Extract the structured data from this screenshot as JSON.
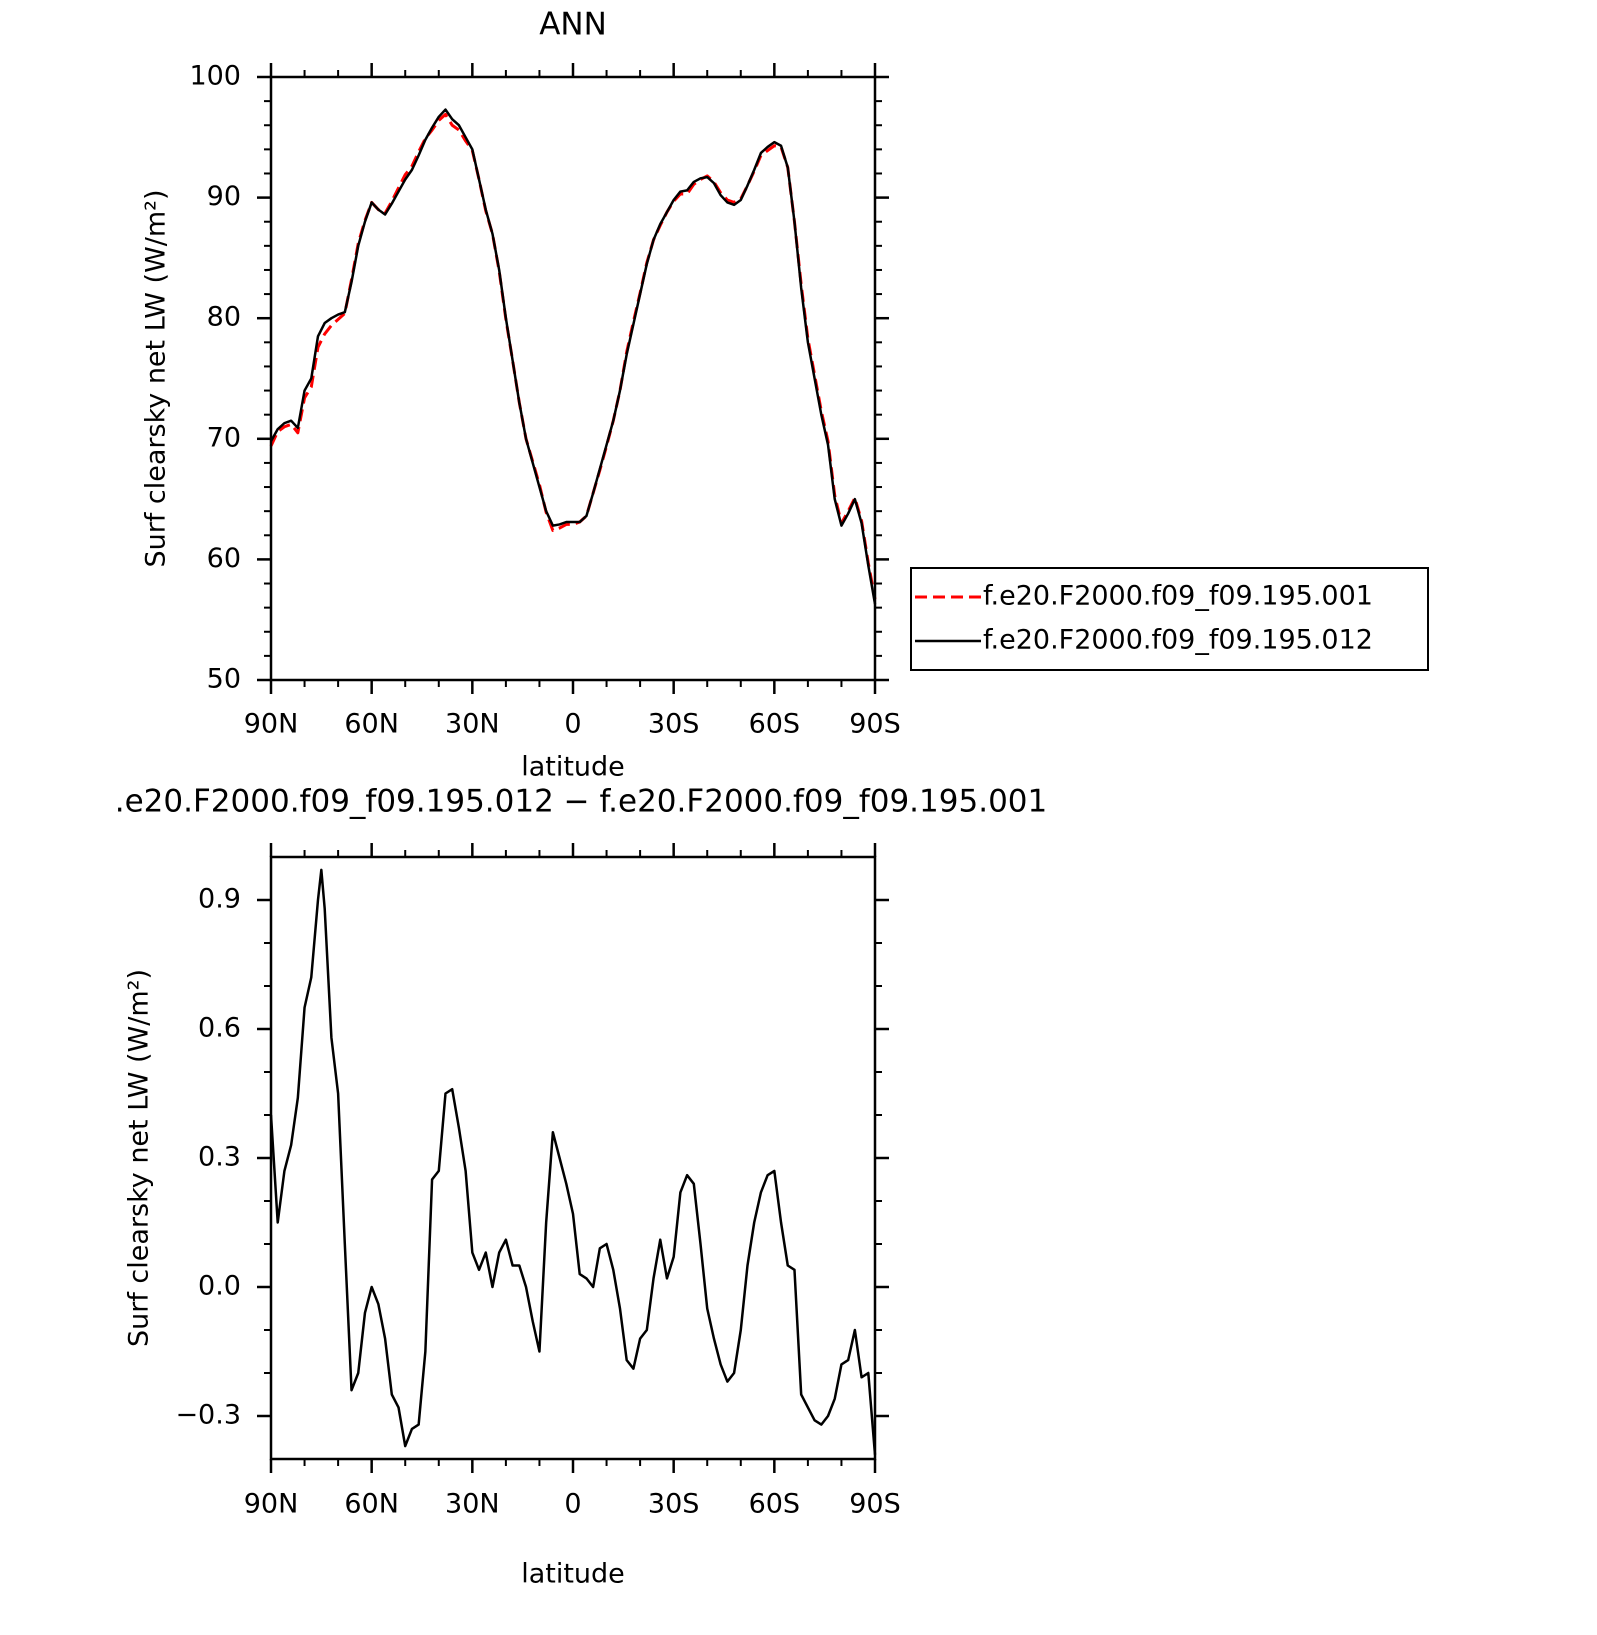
{
  "chart_data": [
    {
      "type": "line",
      "title": "ANN",
      "xlabel": "latitude",
      "ylabel": "Surf clearsky net LW (W/m²)",
      "x": [
        90,
        88,
        86,
        84,
        82,
        80,
        78,
        76,
        74,
        72,
        70,
        68,
        66,
        64,
        62,
        60,
        58,
        56,
        54,
        52,
        50,
        48,
        46,
        44,
        42,
        40,
        38,
        36,
        34,
        32,
        30,
        28,
        26,
        24,
        22,
        20,
        18,
        16,
        14,
        12,
        10,
        8,
        6,
        4,
        2,
        0,
        -2,
        -4,
        -6,
        -8,
        -10,
        -12,
        -14,
        -16,
        -18,
        -20,
        -22,
        -24,
        -26,
        -28,
        -30,
        -32,
        -34,
        -36,
        -38,
        -40,
        -42,
        -44,
        -46,
        -48,
        -50,
        -52,
        -54,
        -56,
        -58,
        -60,
        -62,
        -64,
        -66,
        -68,
        -70,
        -72,
        -74,
        -76,
        -78,
        -80,
        -82,
        -84,
        -86,
        -88,
        -90
      ],
      "series": [
        {
          "name": "f.e20.F2000.f09_f09.195.001",
          "color": "#ff0000",
          "dashed": true,
          "values": [
            69.4,
            70.6,
            71.0,
            71.2,
            70.5,
            73.4,
            74.3,
            77.6,
            78.7,
            79.4,
            79.9,
            80.4,
            83.2,
            86.2,
            88.1,
            89.6,
            89.0,
            88.7,
            89.7,
            90.8,
            91.9,
            92.6,
            93.8,
            94.9,
            95.6,
            96.4,
            96.9,
            96.0,
            95.6,
            94.7,
            93.9,
            91.5,
            88.9,
            87.0,
            83.9,
            79.9,
            76.5,
            73.0,
            70.0,
            68.1,
            66.2,
            63.9,
            62.4,
            62.6,
            62.9,
            62.9,
            63.1,
            63.6,
            65.5,
            67.4,
            69.4,
            71.5,
            74.0,
            77.2,
            79.7,
            82.1,
            84.6,
            86.5,
            87.7,
            88.8,
            89.7,
            90.3,
            90.3,
            91.1,
            91.5,
            91.8,
            91.3,
            90.4,
            89.8,
            89.6,
            89.9,
            91.0,
            92.2,
            93.5,
            93.9,
            94.3,
            94.2,
            92.5,
            88.0,
            82.8,
            78.3,
            75.3,
            72.3,
            69.8,
            65.3,
            63.0,
            64.0,
            65.1,
            63.2,
            59.7,
            56.7
          ]
        },
        {
          "name": "f.e20.F2000.f09_f09.195.012",
          "color": "#000000",
          "dashed": false,
          "values": [
            69.8,
            70.8,
            71.3,
            71.5,
            70.9,
            74.0,
            75.0,
            78.5,
            79.6,
            80.0,
            80.3,
            80.5,
            83.0,
            86.0,
            88.0,
            89.6,
            89.0,
            88.6,
            89.5,
            90.5,
            91.5,
            92.3,
            93.5,
            94.8,
            95.8,
            96.7,
            97.3,
            96.5,
            96.0,
            95.0,
            94.0,
            91.5,
            89.0,
            87.0,
            84.0,
            80.0,
            76.5,
            73.0,
            70.0,
            68.0,
            66.0,
            64.0,
            62.8,
            62.9,
            63.1,
            63.1,
            63.1,
            63.6,
            65.5,
            67.5,
            69.5,
            71.5,
            74.0,
            77.0,
            79.5,
            82.0,
            84.5,
            86.5,
            87.8,
            88.8,
            89.8,
            90.5,
            90.6,
            91.3,
            91.6,
            91.7,
            91.2,
            90.2,
            89.6,
            89.4,
            89.8,
            91.0,
            92.3,
            93.7,
            94.2,
            94.6,
            94.3,
            92.5,
            88.0,
            82.5,
            78.0,
            75.0,
            72.0,
            69.5,
            65.0,
            62.8,
            63.8,
            65.0,
            63.0,
            59.5,
            56.3
          ]
        }
      ],
      "xlim": [
        90,
        -90
      ],
      "xticks": [
        {
          "value": 90,
          "label": "90N"
        },
        {
          "value": 60,
          "label": "60N"
        },
        {
          "value": 30,
          "label": "30N"
        },
        0,
        {
          "value": -30,
          "label": "30S"
        },
        {
          "value": -60,
          "label": "60S"
        },
        {
          "value": -90,
          "label": "90S"
        }
      ],
      "minor_xticks": [
        80,
        70,
        50,
        40,
        20,
        10,
        -10,
        -20,
        -40,
        -50,
        -70,
        -80
      ],
      "ylim": [
        50,
        100
      ],
      "yticks": [
        50,
        60,
        70,
        80,
        90,
        100
      ],
      "minor_yticks": [
        52,
        54,
        56,
        58,
        62,
        64,
        66,
        68,
        72,
        74,
        76,
        78,
        82,
        84,
        86,
        88,
        92,
        94,
        96,
        98
      ],
      "legend": "right"
    },
    {
      "type": "line",
      "title": ".e20.F2000.f09_f09.195.012 − f.e20.F2000.f09_f09.195.001",
      "xlabel": "latitude",
      "ylabel": "Surf clearsky net LW (W/m²)",
      "x": [
        90,
        88,
        86,
        84,
        82,
        80,
        78,
        76,
        75,
        74,
        72,
        70,
        68,
        66,
        64,
        62,
        60,
        58,
        56,
        54,
        52,
        50,
        48,
        46,
        44,
        42,
        40,
        38,
        36,
        34,
        32,
        30,
        28,
        26,
        24,
        22,
        20,
        18,
        16,
        14,
        12,
        10,
        8,
        6,
        4,
        2,
        0,
        -2,
        -4,
        -6,
        -8,
        -10,
        -12,
        -14,
        -16,
        -18,
        -20,
        -22,
        -24,
        -26,
        -28,
        -30,
        -32,
        -34,
        -36,
        -38,
        -40,
        -42,
        -44,
        -46,
        -48,
        -50,
        -52,
        -54,
        -56,
        -58,
        -60,
        -62,
        -64,
        -66,
        -68,
        -70,
        -72,
        -74,
        -76,
        -78,
        -80,
        -82,
        -84,
        -86,
        -88,
        -90
      ],
      "series": [
        {
          "color": "#000000",
          "dashed": false,
          "values": [
            0.4,
            0.15,
            0.27,
            0.33,
            0.44,
            0.65,
            0.72,
            0.9,
            0.97,
            0.88,
            0.58,
            0.45,
            0.1,
            -0.24,
            -0.2,
            -0.06,
            0.0,
            -0.04,
            -0.12,
            -0.25,
            -0.28,
            -0.37,
            -0.33,
            -0.32,
            -0.15,
            0.25,
            0.27,
            0.45,
            0.46,
            0.37,
            0.27,
            0.08,
            0.04,
            0.08,
            0.0,
            0.08,
            0.11,
            0.05,
            0.05,
            0.0,
            -0.08,
            -0.15,
            0.15,
            0.36,
            0.3,
            0.24,
            0.17,
            0.03,
            0.02,
            0.0,
            0.09,
            0.1,
            0.04,
            -0.05,
            -0.17,
            -0.19,
            -0.12,
            -0.1,
            0.02,
            0.11,
            0.02,
            0.07,
            0.22,
            0.26,
            0.24,
            0.1,
            -0.05,
            -0.12,
            -0.18,
            -0.22,
            -0.2,
            -0.1,
            0.05,
            0.15,
            0.22,
            0.26,
            0.27,
            0.15,
            0.05,
            0.04,
            -0.25,
            -0.28,
            -0.31,
            -0.32,
            -0.3,
            -0.26,
            -0.18,
            -0.17,
            -0.1,
            -0.21,
            -0.2,
            -0.39
          ]
        }
      ],
      "xlim": [
        90,
        -90
      ],
      "xticks": [
        {
          "value": 90,
          "label": "90N"
        },
        {
          "value": 60,
          "label": "60N"
        },
        {
          "value": 30,
          "label": "30N"
        },
        0,
        {
          "value": -30,
          "label": "30S"
        },
        {
          "value": -60,
          "label": "60S"
        },
        {
          "value": -90,
          "label": "90S"
        }
      ],
      "minor_xticks": [
        80,
        70,
        50,
        40,
        20,
        10,
        -10,
        -20,
        -40,
        -50,
        -70,
        -80
      ],
      "ylim": [
        -0.4,
        1.0
      ],
      "yticks": [
        {
          "value": -0.3,
          "label": "−0.3"
        },
        {
          "value": 0,
          "label": "0.0"
        },
        0.3,
        0.6,
        0.9
      ],
      "minor_yticks": [
        -0.2,
        -0.1,
        0.1,
        0.2,
        0.4,
        0.5,
        0.7,
        0.8
      ]
    }
  ]
}
